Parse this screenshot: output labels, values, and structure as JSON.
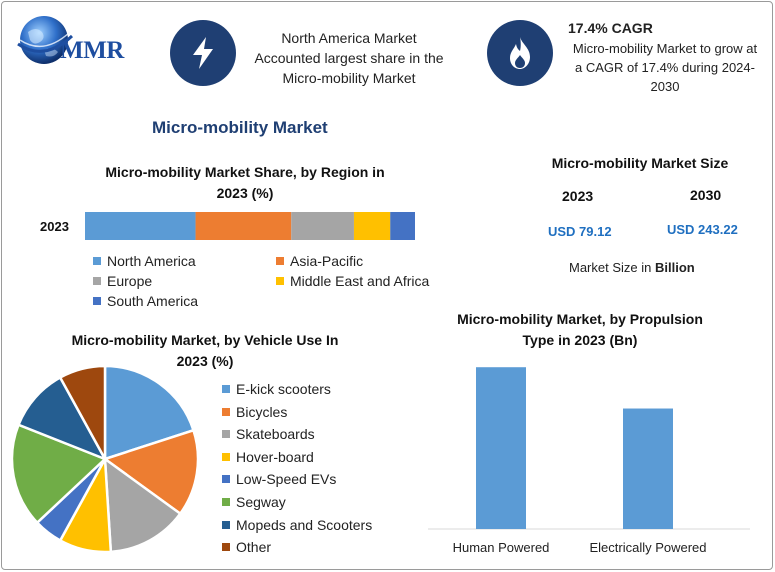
{
  "logo": {
    "text": "MMR"
  },
  "highlights": {
    "north_america": {
      "icon": "lightning-icon",
      "lines": [
        "North America Market",
        "Accounted largest share in the",
        "Micro-mobility Market"
      ]
    },
    "cagr": {
      "icon": "flame-icon",
      "title": "17.4% CAGR",
      "lines": [
        "Micro-mobility Market to grow at",
        "a CAGR of 17.4% during 2024-",
        "2030"
      ]
    }
  },
  "main_title": "Micro-mobility Market",
  "market_size": {
    "title": "Micro-mobility Market Size",
    "years": [
      "2023",
      "2030"
    ],
    "values": [
      "USD 79.12",
      "USD 243.22"
    ],
    "note_prefix": "Market Size in ",
    "note_unit": "Billion"
  },
  "colors": {
    "blue": "#5b9bd5",
    "orange": "#ed7d31",
    "gray": "#a5a5a5",
    "yellow": "#ffc000",
    "darkblue": "#4472c4",
    "green": "#70ad47",
    "navy": "#255e91",
    "brown": "#9e480e"
  },
  "chart_data": [
    {
      "type": "bar",
      "orientation": "horizontal-stacked",
      "title_lines": [
        "Micro-mobility Market Share, by Region in",
        "2023 (%)"
      ],
      "categories": [
        "2023"
      ],
      "series": [
        {
          "name": "North America",
          "values": [
            33.5
          ],
          "color": "#5b9bd5"
        },
        {
          "name": "Asia-Pacific",
          "values": [
            29
          ],
          "color": "#ed7d31"
        },
        {
          "name": "Europe",
          "values": [
            19
          ],
          "color": "#a5a5a5"
        },
        {
          "name": "Middle East and Africa",
          "values": [
            11
          ],
          "color": "#ffc000"
        },
        {
          "name": "South America",
          "values": [
            7.5
          ],
          "color": "#4472c4"
        }
      ],
      "xlim": [
        0,
        100
      ],
      "legend": "bottom"
    },
    {
      "type": "pie",
      "title_lines": [
        "Micro-mobility Market, by Vehicle Use In",
        "2023 (%)"
      ],
      "labels": [
        "E-kick scooters",
        "Bicycles",
        "Skateboards",
        "Hover-board",
        "Low-Speed EVs",
        "Segway",
        "Mopeds and Scooters",
        "Other"
      ],
      "values": [
        20,
        15,
        14,
        9,
        5,
        18,
        11,
        8
      ],
      "colors": [
        "#5b9bd5",
        "#ed7d31",
        "#a5a5a5",
        "#ffc000",
        "#4472c4",
        "#70ad47",
        "#255e91",
        "#9e480e"
      ],
      "legend": "right"
    },
    {
      "type": "bar",
      "title_lines": [
        "Micro-mobility Market, by Propulsion",
        "Type in 2023 (Bn)"
      ],
      "categories": [
        "Human Powered",
        "Electrically Powered"
      ],
      "values": [
        47,
        35
      ],
      "color": "#5b9bd5",
      "ylim": [
        0,
        52
      ],
      "grid": false
    }
  ]
}
